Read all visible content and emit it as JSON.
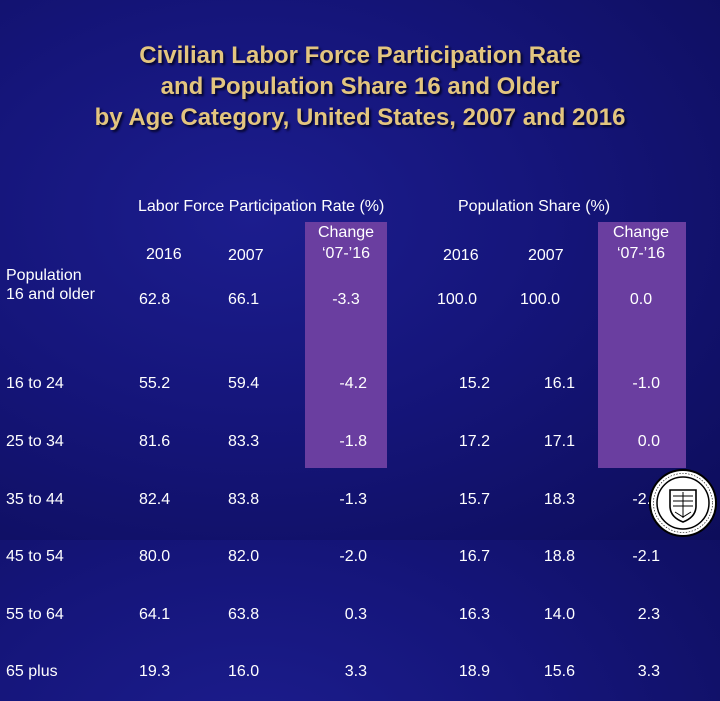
{
  "title": {
    "line1": "Civilian Labor Force Participation Rate",
    "line2": "and Population Share 16 and Older",
    "line3": "by Age Category, United States, 2007 and 2016"
  },
  "headers": {
    "lfpr_group": "Labor Force Participation Rate (%)",
    "share_group": "Population Share (%)",
    "y2016": "2016",
    "y2007": "2007",
    "change_line1": "Change",
    "change_line2": "‘07-’16"
  },
  "total_row": {
    "label_line1": "Population",
    "label_line2": "16 and older",
    "lfpr_2016": "62.8",
    "lfpr_2007": "66.1",
    "lfpr_change": "-3.3",
    "share_2016": "100.0",
    "share_2007": "100.0",
    "share_change": "0.0"
  },
  "rows": [
    {
      "label": "16 to 24",
      "lfpr_2016": "55.2",
      "lfpr_2007": "59.4",
      "lfpr_change": "-4.2",
      "share_2016": "15.2",
      "share_2007": "16.1",
      "share_change": "-1.0"
    },
    {
      "label": "25 to 34",
      "lfpr_2016": "81.6",
      "lfpr_2007": "83.3",
      "lfpr_change": "-1.8",
      "share_2016": "17.2",
      "share_2007": "17.1",
      "share_change": "0.0"
    },
    {
      "label": "35 to 44",
      "lfpr_2016": "82.4",
      "lfpr_2007": "83.8",
      "lfpr_change": "-1.3",
      "share_2016": "15.7",
      "share_2007": "18.3",
      "share_change": "-2.6"
    },
    {
      "label": "45 to 54",
      "lfpr_2016": "80.0",
      "lfpr_2007": "82.0",
      "lfpr_change": "-2.0",
      "share_2016": "16.7",
      "share_2007": "18.8",
      "share_change": "-2.1"
    },
    {
      "label": "55 to 64",
      "lfpr_2016": "64.1",
      "lfpr_2007": "63.8",
      "lfpr_change": "0.3",
      "share_2016": "16.3",
      "share_2007": "14.0",
      "share_change": "2.3"
    },
    {
      "label": "65 plus",
      "lfpr_2016": "19.3",
      "lfpr_2007": "16.0",
      "lfpr_change": "3.3",
      "share_2016": "18.9",
      "share_2007": "15.6",
      "share_change": "3.3"
    }
  ],
  "colors": {
    "background": "#15157a",
    "title": "#e3c57f",
    "highlight_band": "#6a3ea0",
    "text": "#ffffff"
  },
  "seal": {
    "icon": "university-seal-icon"
  }
}
